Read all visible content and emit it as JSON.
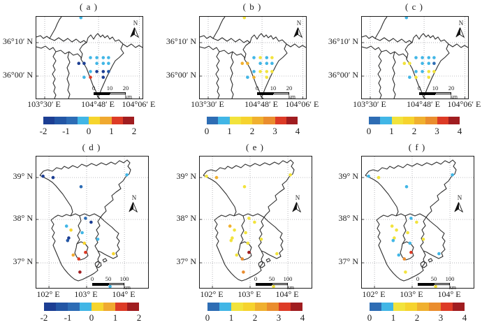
{
  "figure": {
    "background": "#ffffff",
    "description": "six-panel station scatter maps with discrete colorbars"
  },
  "palettes": {
    "diverging": [
      "#1c3e93",
      "#2356a5",
      "#2d6cb5",
      "#41b6e6",
      "#f6d52d",
      "#f0a930",
      "#dd3b26",
      "#a01d20"
    ],
    "sequential": [
      "#2e6db4",
      "#41b6e6",
      "#f2e33c",
      "#f6d32e",
      "#f0b02f",
      "#ea8d2e",
      "#dd3b26",
      "#a01d20"
    ]
  },
  "point_format": [
    "x_frac",
    "y_frac",
    "value"
  ],
  "chart_data": [
    {
      "id": "a",
      "type": "scatter",
      "title": "( a )",
      "map_shape": "top",
      "x_tick_labels": [
        "103°30′ E",
        "104°48′ E",
        "104°06′ E"
      ],
      "y_tick_labels": [
        "36°10′ N",
        "36°00′ N"
      ],
      "grid_x": [
        0.079,
        0.586,
        0.97
      ],
      "grid_y": [
        0.316,
        0.726
      ],
      "colorbar": {
        "palette": "diverging",
        "range": [
          -2,
          2
        ],
        "tick_labels": [
          "-2",
          "-1",
          "0",
          "1",
          "2"
        ]
      },
      "scale_bar": {
        "tick_labels": [
          "0",
          "10",
          "20"
        ],
        "unit": "km"
      },
      "north_label": "N",
      "points": [
        [
          0.42,
          0.01,
          -0.25
        ],
        [
          0.51,
          0.5,
          -0.25
        ],
        [
          0.57,
          0.5,
          -0.25
        ],
        [
          0.63,
          0.5,
          -0.25
        ],
        [
          0.68,
          0.5,
          -0.25
        ],
        [
          0.4,
          0.57,
          -1.75
        ],
        [
          0.45,
          0.57,
          -1.75
        ],
        [
          0.57,
          0.57,
          -0.25
        ],
        [
          0.63,
          0.57,
          -0.25
        ],
        [
          0.68,
          0.57,
          -0.25
        ],
        [
          0.51,
          0.67,
          -0.25
        ],
        [
          0.57,
          0.67,
          -1.75
        ],
        [
          0.63,
          0.67,
          -1.75
        ],
        [
          0.68,
          0.67,
          -1.25
        ],
        [
          0.45,
          0.74,
          -0.25
        ],
        [
          0.51,
          0.74,
          1.25
        ],
        [
          0.63,
          0.74,
          -1.75
        ]
      ]
    },
    {
      "id": "b",
      "type": "scatter",
      "title": "( b )",
      "map_shape": "top",
      "x_tick_labels": [
        "103°30′ E",
        "104°48′ E",
        "104°06′ E"
      ],
      "y_tick_labels": [
        "36°10′ N",
        "36°00′ N"
      ],
      "grid_x": [
        0.079,
        0.586,
        0.97
      ],
      "grid_y": [
        0.316,
        0.726
      ],
      "colorbar": {
        "palette": "sequential",
        "range": [
          0,
          4
        ],
        "tick_labels": [
          "0",
          "1",
          "2",
          "3",
          "4"
        ]
      },
      "scale_bar": {
        "tick_labels": [
          "0",
          "10",
          "20"
        ],
        "unit": "km"
      },
      "north_label": "N",
      "points": [
        [
          0.42,
          0.01,
          1.25
        ],
        [
          0.51,
          0.5,
          0.75
        ],
        [
          0.57,
          0.5,
          1.25
        ],
        [
          0.63,
          0.5,
          0.75
        ],
        [
          0.68,
          0.5,
          1.25
        ],
        [
          0.4,
          0.57,
          2.25
        ],
        [
          0.45,
          0.57,
          2.25
        ],
        [
          0.57,
          0.57,
          0.75
        ],
        [
          0.63,
          0.57,
          0.75
        ],
        [
          0.68,
          0.57,
          0.75
        ],
        [
          0.51,
          0.67,
          0.75
        ],
        [
          0.57,
          0.67,
          1.25
        ],
        [
          0.63,
          0.67,
          1.25
        ],
        [
          0.68,
          0.67,
          1.25
        ],
        [
          0.45,
          0.74,
          0.75
        ],
        [
          0.51,
          0.74,
          2.25
        ],
        [
          0.63,
          0.74,
          1.25
        ]
      ]
    },
    {
      "id": "c",
      "type": "scatter",
      "title": "( c )",
      "map_shape": "top",
      "x_tick_labels": [
        "103°30′ E",
        "104°48′ E",
        "104°06′ E"
      ],
      "y_tick_labels": [
        "36°10′ N",
        "36°00′ N"
      ],
      "grid_x": [
        0.079,
        0.586,
        0.97
      ],
      "grid_y": [
        0.316,
        0.726
      ],
      "colorbar": {
        "palette": "sequential",
        "range": [
          0,
          4
        ],
        "tick_labels": [
          "0",
          "1",
          "2",
          "3",
          "4"
        ]
      },
      "scale_bar": {
        "tick_labels": [
          "0",
          "10",
          "20"
        ],
        "unit": "km"
      },
      "north_label": "N",
      "points": [
        [
          0.42,
          0.01,
          0.75
        ],
        [
          0.51,
          0.5,
          0.75
        ],
        [
          0.57,
          0.5,
          0.75
        ],
        [
          0.63,
          0.5,
          0.75
        ],
        [
          0.68,
          0.5,
          0.75
        ],
        [
          0.4,
          0.57,
          1.25
        ],
        [
          0.45,
          0.57,
          1.25
        ],
        [
          0.57,
          0.57,
          0.75
        ],
        [
          0.63,
          0.57,
          0.75
        ],
        [
          0.68,
          0.57,
          0.25
        ],
        [
          0.51,
          0.67,
          0.75
        ],
        [
          0.57,
          0.67,
          0.75
        ],
        [
          0.63,
          0.67,
          1.25
        ],
        [
          0.68,
          0.67,
          1.25
        ],
        [
          0.45,
          0.74,
          0.75
        ],
        [
          0.51,
          0.74,
          1.25
        ],
        [
          0.63,
          0.74,
          1.25
        ]
      ]
    },
    {
      "id": "d",
      "type": "scatter",
      "title": "( d )",
      "map_shape": "bottom",
      "x_tick_labels": [
        "102° E",
        "103° E",
        "104° E"
      ],
      "y_tick_labels": [
        "39° N",
        "38° N",
        "37° N"
      ],
      "grid_x": [
        0.113,
        0.45,
        0.788
      ],
      "grid_y": [
        0.16,
        0.479,
        0.809
      ],
      "colorbar": {
        "palette": "diverging",
        "range": [
          -2,
          2
        ],
        "tick_labels": [
          "-2",
          "-1",
          "0",
          "1",
          "2"
        ]
      },
      "scale_bar": {
        "tick_labels": [
          "0",
          "50",
          "100"
        ],
        "unit": "km"
      },
      "north_label": "N",
      "points": [
        [
          0.06,
          0.15,
          -1.75
        ],
        [
          0.15,
          0.16,
          -1.75
        ],
        [
          0.4,
          0.23,
          -0.75
        ],
        [
          0.81,
          0.14,
          -0.25
        ],
        [
          0.44,
          0.47,
          -0.75
        ],
        [
          0.49,
          0.5,
          -1.75
        ],
        [
          0.27,
          0.53,
          -0.25
        ],
        [
          0.31,
          0.56,
          0.25
        ],
        [
          0.41,
          0.58,
          -0.25
        ],
        [
          0.29,
          0.62,
          -1.75
        ],
        [
          0.28,
          0.64,
          -1.25
        ],
        [
          0.55,
          0.63,
          -0.25
        ],
        [
          0.43,
          0.66,
          0.25
        ],
        [
          0.44,
          0.73,
          1.25
        ],
        [
          0.33,
          0.75,
          0.75
        ],
        [
          0.38,
          0.78,
          1.25
        ],
        [
          0.69,
          0.74,
          0.25
        ],
        [
          0.39,
          0.88,
          1.75
        ],
        [
          0.66,
          0.99,
          -0.25
        ]
      ]
    },
    {
      "id": "e",
      "type": "scatter",
      "title": "( e )",
      "map_shape": "bottom",
      "x_tick_labels": [
        "102° E",
        "103° E",
        "104° E"
      ],
      "y_tick_labels": [
        "39° N",
        "38° N",
        "37° N"
      ],
      "grid_x": [
        0.113,
        0.45,
        0.788
      ],
      "grid_y": [
        0.16,
        0.479,
        0.809
      ],
      "colorbar": {
        "palette": "sequential",
        "range": [
          0,
          4
        ],
        "tick_labels": [
          "0",
          "1",
          "2",
          "3",
          "4"
        ]
      },
      "scale_bar": {
        "tick_labels": [
          "0",
          "50",
          "100"
        ],
        "unit": "km"
      },
      "north_label": "N",
      "points": [
        [
          0.06,
          0.15,
          1.25
        ],
        [
          0.15,
          0.16,
          2.25
        ],
        [
          0.4,
          0.23,
          1.25
        ],
        [
          0.81,
          0.14,
          1.25
        ],
        [
          0.44,
          0.47,
          1.25
        ],
        [
          0.49,
          0.5,
          1.25
        ],
        [
          0.27,
          0.53,
          2.25
        ],
        [
          0.31,
          0.56,
          1.25
        ],
        [
          0.41,
          0.58,
          1.25
        ],
        [
          0.29,
          0.62,
          1.25
        ],
        [
          0.28,
          0.64,
          1.25
        ],
        [
          0.55,
          0.63,
          1.25
        ],
        [
          0.43,
          0.66,
          1.25
        ],
        [
          0.44,
          0.73,
          3.75
        ],
        [
          0.33,
          0.75,
          1.25
        ],
        [
          0.38,
          0.78,
          2.75
        ],
        [
          0.69,
          0.74,
          1.25
        ],
        [
          0.39,
          0.88,
          2.75
        ],
        [
          0.66,
          0.99,
          1.25
        ]
      ]
    },
    {
      "id": "f",
      "type": "scatter",
      "title": "( f )",
      "map_shape": "bottom",
      "x_tick_labels": [
        "102° E",
        "103° E",
        "104° E"
      ],
      "y_tick_labels": [
        "39° N",
        "38° N",
        "37° N"
      ],
      "grid_x": [
        0.113,
        0.45,
        0.788
      ],
      "grid_y": [
        0.16,
        0.479,
        0.809
      ],
      "colorbar": {
        "palette": "sequential",
        "range": [
          0,
          4
        ],
        "tick_labels": [
          "0",
          "1",
          "2",
          "3",
          "4"
        ]
      },
      "scale_bar": {
        "tick_labels": [
          "0",
          "50",
          "100"
        ],
        "unit": "km"
      },
      "north_label": "N",
      "points": [
        [
          0.06,
          0.15,
          0.75
        ],
        [
          0.15,
          0.16,
          1.25
        ],
        [
          0.4,
          0.23,
          0.75
        ],
        [
          0.81,
          0.14,
          0.75
        ],
        [
          0.44,
          0.47,
          0.75
        ],
        [
          0.49,
          0.5,
          1.25
        ],
        [
          0.27,
          0.53,
          1.25
        ],
        [
          0.31,
          0.56,
          1.25
        ],
        [
          0.41,
          0.58,
          1.25
        ],
        [
          0.29,
          0.62,
          1.25
        ],
        [
          0.28,
          0.64,
          0.75
        ],
        [
          0.55,
          0.63,
          1.25
        ],
        [
          0.43,
          0.66,
          0.75
        ],
        [
          0.44,
          0.73,
          3.25
        ],
        [
          0.33,
          0.75,
          0.75
        ],
        [
          0.38,
          0.78,
          2.75
        ],
        [
          0.69,
          0.74,
          0.75
        ],
        [
          0.39,
          0.88,
          1.25
        ],
        [
          0.66,
          0.99,
          1.25
        ]
      ]
    }
  ]
}
